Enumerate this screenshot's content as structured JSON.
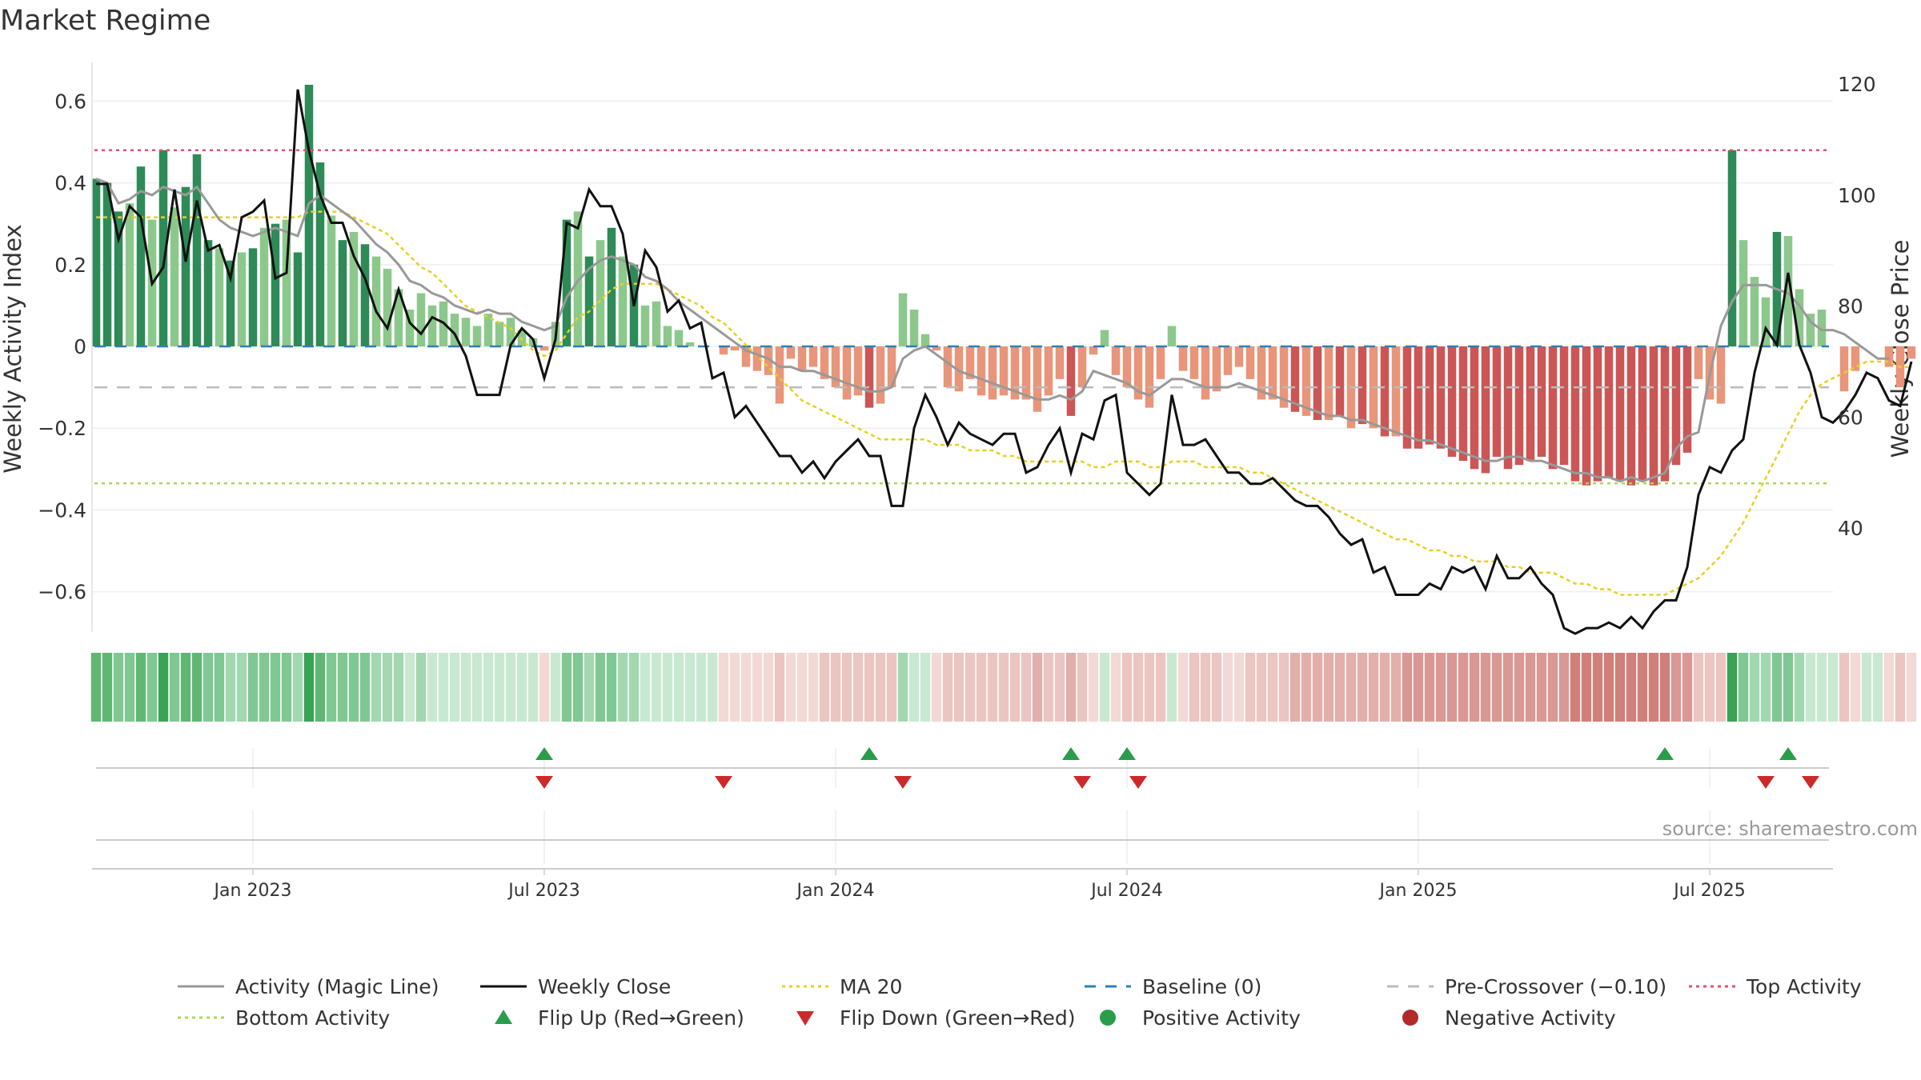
{
  "chart_data": {
    "type": "bar",
    "title": "Market Regime",
    "ylabel": "Weekly Activity Index",
    "y2label": "Weekly Close Price",
    "source": "source: sharemaestro.com",
    "ylim": [
      -0.7,
      0.7
    ],
    "y2lim": [
      22,
      125
    ],
    "yticks": [
      "0.6",
      "0.4",
      "0.2",
      "0",
      "−0.2",
      "−0.4",
      "−0.6"
    ],
    "y2ticks": [
      "120",
      "100",
      "80",
      "60",
      "40"
    ],
    "xticks": [
      "Jan 2023",
      "Jul 2023",
      "Jan 2024",
      "Jul 2024",
      "Jan 2025",
      "Jul 2025"
    ],
    "xtick_week_index": [
      14,
      40,
      66,
      92,
      118,
      144
    ],
    "grid": true,
    "legend_position": "bottom",
    "reference_lines": {
      "top_activity": 0.48,
      "bottom_activity": -0.335,
      "baseline": 0,
      "pre_crossover": -0.1
    },
    "activity": [
      0.41,
      0.4,
      0.33,
      0.35,
      0.44,
      0.31,
      0.48,
      0.34,
      0.39,
      0.47,
      0.26,
      0.24,
      0.21,
      0.23,
      0.24,
      0.29,
      0.3,
      0.31,
      0.23,
      0.64,
      0.45,
      0.32,
      0.26,
      0.28,
      0.25,
      0.22,
      0.19,
      0.14,
      0.09,
      0.13,
      0.1,
      0.11,
      0.08,
      0.07,
      0.05,
      0.08,
      0.06,
      0.07,
      0.04,
      0.02,
      -0.01,
      0.06,
      0.31,
      0.33,
      0.22,
      0.26,
      0.29,
      0.22,
      0.2,
      0.1,
      0.11,
      0.05,
      0.04,
      0.01,
      0.0,
      0.0,
      -0.02,
      -0.01,
      -0.05,
      -0.06,
      -0.07,
      -0.14,
      -0.03,
      -0.06,
      -0.05,
      -0.08,
      -0.1,
      -0.13,
      -0.12,
      -0.15,
      -0.14,
      -0.1,
      0.13,
      0.09,
      0.03,
      -0.01,
      -0.1,
      -0.11,
      -0.08,
      -0.12,
      -0.13,
      -0.12,
      -0.13,
      -0.13,
      -0.16,
      -0.12,
      -0.08,
      -0.17,
      -0.1,
      -0.02,
      0.04,
      -0.07,
      -0.1,
      -0.13,
      -0.15,
      -0.08,
      0.05,
      -0.06,
      -0.08,
      -0.13,
      -0.11,
      -0.07,
      -0.05,
      -0.08,
      -0.13,
      -0.13,
      -0.15,
      -0.16,
      -0.17,
      -0.18,
      -0.18,
      -0.17,
      -0.2,
      -0.19,
      -0.2,
      -0.22,
      -0.22,
      -0.25,
      -0.25,
      -0.24,
      -0.25,
      -0.27,
      -0.28,
      -0.3,
      -0.31,
      -0.27,
      -0.3,
      -0.29,
      -0.28,
      -0.27,
      -0.3,
      -0.29,
      -0.33,
      -0.34,
      -0.33,
      -0.32,
      -0.33,
      -0.34,
      -0.33,
      -0.34,
      -0.33,
      -0.29,
      -0.26,
      -0.08,
      -0.13,
      -0.14,
      0.48,
      0.26,
      0.17,
      0.12,
      0.28,
      0.27,
      0.14,
      0.08,
      0.09,
      0.0,
      -0.11,
      -0.06,
      0.0,
      0.0,
      -0.05,
      -0.1,
      -0.03
    ],
    "activity_line": [
      0.41,
      0.4,
      0.35,
      0.36,
      0.38,
      0.37,
      0.39,
      0.38,
      0.37,
      0.39,
      0.35,
      0.31,
      0.29,
      0.28,
      0.27,
      0.28,
      0.29,
      0.28,
      0.27,
      0.35,
      0.37,
      0.35,
      0.33,
      0.31,
      0.28,
      0.25,
      0.23,
      0.2,
      0.16,
      0.15,
      0.13,
      0.12,
      0.1,
      0.09,
      0.08,
      0.09,
      0.08,
      0.08,
      0.06,
      0.05,
      0.04,
      0.05,
      0.12,
      0.16,
      0.19,
      0.21,
      0.22,
      0.21,
      0.2,
      0.17,
      0.16,
      0.14,
      0.11,
      0.09,
      0.07,
      0.05,
      0.03,
      0.01,
      -0.01,
      -0.02,
      -0.03,
      -0.05,
      -0.05,
      -0.06,
      -0.06,
      -0.07,
      -0.08,
      -0.09,
      -0.1,
      -0.11,
      -0.11,
      -0.1,
      -0.03,
      -0.01,
      0.0,
      -0.02,
      -0.04,
      -0.06,
      -0.07,
      -0.08,
      -0.09,
      -0.1,
      -0.11,
      -0.12,
      -0.13,
      -0.13,
      -0.12,
      -0.13,
      -0.11,
      -0.06,
      -0.07,
      -0.08,
      -0.09,
      -0.11,
      -0.12,
      -0.1,
      -0.08,
      -0.08,
      -0.09,
      -0.1,
      -0.1,
      -0.1,
      -0.09,
      -0.1,
      -0.11,
      -0.12,
      -0.13,
      -0.14,
      -0.15,
      -0.16,
      -0.17,
      -0.17,
      -0.18,
      -0.18,
      -0.19,
      -0.2,
      -0.21,
      -0.22,
      -0.23,
      -0.23,
      -0.24,
      -0.25,
      -0.26,
      -0.27,
      -0.28,
      -0.28,
      -0.27,
      -0.27,
      -0.28,
      -0.28,
      -0.29,
      -0.3,
      -0.31,
      -0.31,
      -0.32,
      -0.32,
      -0.33,
      -0.32,
      -0.33,
      -0.32,
      -0.31,
      -0.25,
      -0.22,
      -0.21,
      -0.07,
      0.05,
      0.11,
      0.15,
      0.15,
      0.15,
      0.14,
      0.13,
      0.1,
      0.06,
      0.04,
      0.04,
      0.03,
      0.01,
      -0.01,
      -0.03,
      -0.03
    ],
    "weekly_close": [
      102,
      102,
      92,
      98,
      96,
      84,
      87,
      101,
      88,
      99,
      90,
      91,
      85,
      96,
      97,
      99,
      85,
      86,
      119,
      108,
      100,
      95,
      95,
      89,
      85,
      79,
      76,
      83,
      77,
      75,
      78,
      77,
      75,
      71,
      64,
      64,
      64,
      73,
      76,
      74,
      67,
      74,
      95,
      94,
      101,
      98,
      98,
      93,
      80,
      90,
      87,
      79,
      81,
      76,
      77,
      67,
      68,
      60,
      62,
      59,
      56,
      53,
      53,
      50,
      52,
      49,
      52,
      54,
      56,
      53,
      53,
      44,
      44,
      58,
      64,
      60,
      55,
      59,
      57,
      56,
      55,
      57,
      57,
      50,
      51,
      55,
      58,
      50,
      57,
      56,
      63,
      64,
      50,
      48,
      46,
      48,
      64,
      55,
      55,
      56,
      53,
      50,
      50,
      48,
      48,
      49,
      47,
      45,
      44,
      44,
      42,
      39,
      37,
      38,
      32,
      33,
      28,
      28,
      28,
      30,
      29,
      33,
      32,
      33,
      29,
      35,
      31,
      31,
      33,
      30,
      28,
      22,
      21,
      22,
      22,
      23,
      22,
      24,
      22,
      25,
      27,
      27,
      33,
      46,
      51,
      50,
      54,
      56,
      68,
      76,
      73,
      86,
      73,
      68,
      60,
      59,
      61,
      64,
      68,
      67,
      63,
      62,
      70
    ],
    "ma20": [
      96,
      96,
      96,
      96,
      96,
      96,
      96,
      96,
      96,
      96,
      96,
      96,
      96,
      96,
      96,
      96,
      96,
      96,
      96,
      97,
      97,
      97,
      97,
      96,
      95,
      94,
      93,
      91,
      89,
      87,
      86,
      84,
      82,
      80,
      79,
      78,
      77,
      76,
      74,
      72,
      71,
      72,
      75,
      78,
      79,
      81,
      83,
      84,
      84,
      84,
      84,
      83,
      82,
      81,
      80,
      78,
      77,
      75,
      73,
      71,
      69,
      67,
      65,
      63,
      62,
      61,
      60,
      59,
      58,
      57,
      56,
      56,
      56,
      56,
      56,
      55,
      55,
      55,
      54,
      54,
      54,
      53,
      53,
      52,
      52,
      52,
      52,
      52,
      52,
      51,
      51,
      52,
      52,
      52,
      51,
      51,
      52,
      52,
      52,
      51,
      51,
      51,
      51,
      50,
      50,
      49,
      48,
      47,
      46,
      45,
      44,
      43,
      42,
      41,
      40,
      39,
      38,
      38,
      37,
      36,
      36,
      35,
      35,
      34,
      34,
      34,
      33,
      33,
      32,
      32,
      32,
      31,
      30,
      30,
      29,
      29,
      28,
      28,
      28,
      28,
      28,
      29,
      30,
      31,
      33,
      35,
      38,
      41,
      45,
      49,
      53,
      57,
      61,
      64,
      66,
      67,
      68,
      69,
      70,
      70,
      70,
      69,
      69
    ]
  },
  "regime_strip": {
    "positive_colors": [
      "#c9e8d2",
      "#a3d7b0",
      "#80c793",
      "#5fb773",
      "#3aa356"
    ],
    "negative_colors": [
      "#f2d9d6",
      "#ebc5c1",
      "#e2afaa",
      "#d99893",
      "#cf807a"
    ]
  },
  "signals": {
    "flip_up": [
      40,
      69,
      87,
      92,
      140,
      151
    ],
    "flip_down": [
      40,
      56,
      72,
      88,
      93,
      149,
      153
    ],
    "flip_up_color": "#2a9d4a",
    "flip_down_color": "#cc2a2a"
  },
  "colors": {
    "strong_positive_bar": "#2e8a57",
    "light_positive_bar": "#8cc88c",
    "strong_negative_bar": "#cc5555",
    "light_negative_bar": "#e8957a",
    "activity_line": "#999999",
    "weekly_close": "#111111",
    "ma20": "#e8d020",
    "baseline": "#2c7fb8",
    "pre_crossover": "#bbbbbb",
    "top_activity": "#e0506e",
    "bottom_activity": "#a8d85a"
  },
  "legend": [
    {
      "label": "Activity (Magic Line)",
      "marker": "line",
      "color": "#999999"
    },
    {
      "label": "Weekly Close",
      "marker": "line",
      "color": "#111111"
    },
    {
      "label": "MA 20",
      "marker": "dotted",
      "color": "#e8d020"
    },
    {
      "label": "Baseline (0)",
      "marker": "dashed",
      "color": "#2c7fb8"
    },
    {
      "label": "Pre-Crossover (−0.10)",
      "marker": "dashed",
      "color": "#bbbbbb"
    },
    {
      "label": "Top Activity",
      "marker": "dotted",
      "color": "#e0506e"
    },
    {
      "label": "Bottom Activity",
      "marker": "dotted",
      "color": "#a8d85a"
    },
    {
      "label": "Flip Up (Red→Green)",
      "marker": "triangle-up",
      "color": "#2a9d4a"
    },
    {
      "label": "Flip Down (Green→Red)",
      "marker": "triangle-down",
      "color": "#cc2a2a"
    },
    {
      "label": "Positive Activity",
      "marker": "circle",
      "color": "#2a9d4a"
    },
    {
      "label": "Negative Activity",
      "marker": "circle",
      "color": "#b02a2a"
    }
  ]
}
